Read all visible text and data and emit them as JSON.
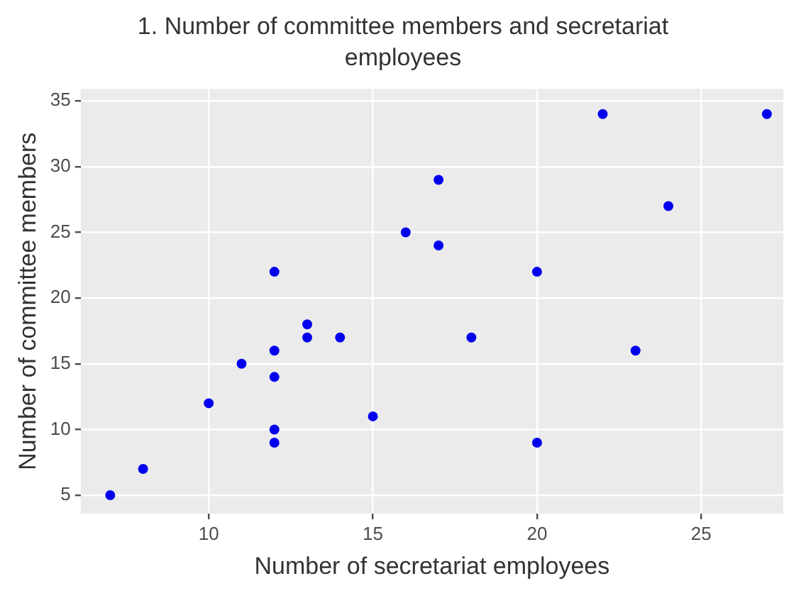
{
  "chart_data": {
    "type": "scatter",
    "title": "1. Number of committee members and secretariat employees",
    "xlabel": "Number of secretariat employees",
    "ylabel": "Number of committee members",
    "x": [
      7,
      8,
      10,
      11,
      12,
      12,
      12,
      12,
      12,
      13,
      13,
      14,
      15,
      16,
      17,
      17,
      18,
      20,
      20,
      22,
      23,
      24,
      27
    ],
    "values": [
      5,
      7,
      12,
      15,
      22,
      16,
      14,
      10,
      9,
      18,
      17,
      17,
      11,
      25,
      29,
      24,
      17,
      22,
      9,
      34,
      16,
      27,
      34
    ],
    "color": "#0000ee",
    "marker": "circle",
    "xlim": [
      6.1,
      27.5
    ],
    "ylim": [
      3.6,
      35.9
    ],
    "xticks": [
      10,
      15,
      20,
      25
    ],
    "yticks": [
      5,
      10,
      15,
      20,
      25,
      30,
      35
    ],
    "grid": true
  }
}
